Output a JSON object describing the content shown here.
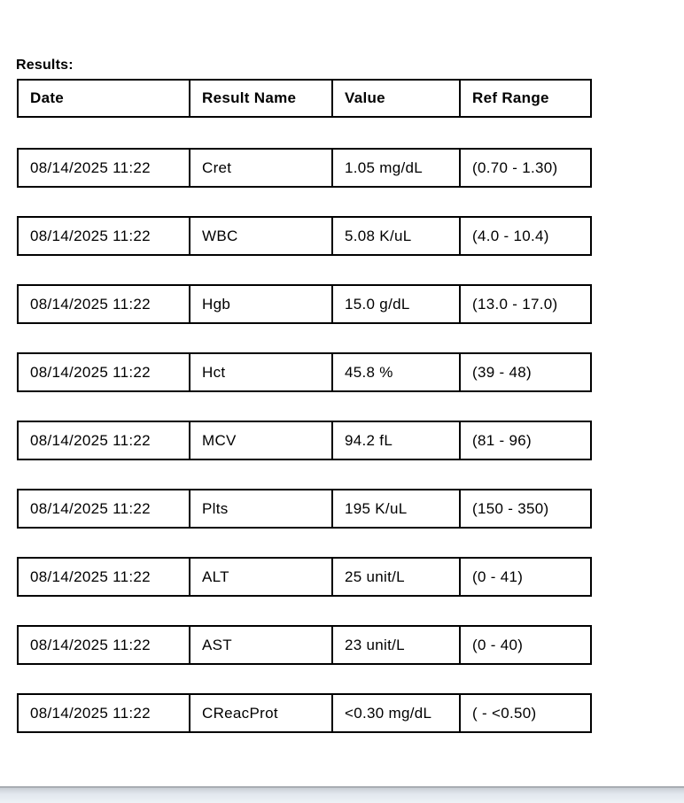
{
  "page": {
    "results_label": "Results:"
  },
  "table": {
    "headers": {
      "date": "Date",
      "result_name": "Result Name",
      "value": "Value",
      "ref_range": "Ref Range"
    },
    "rows": [
      {
        "date": "08/14/2025 11:22",
        "name": "Cret",
        "value": "1.05 mg/dL",
        "ref": "(0.70 - 1.30)"
      },
      {
        "date": "08/14/2025 11:22",
        "name": "WBC",
        "value": "5.08 K/uL",
        "ref": "(4.0 - 10.4)"
      },
      {
        "date": "08/14/2025 11:22",
        "name": "Hgb",
        "value": "15.0 g/dL",
        "ref": "(13.0 - 17.0)"
      },
      {
        "date": "08/14/2025 11:22",
        "name": "Hct",
        "value": "45.8 %",
        "ref": "(39 - 48)"
      },
      {
        "date": "08/14/2025 11:22",
        "name": "MCV",
        "value": "94.2 fL",
        "ref": "(81 - 96)"
      },
      {
        "date": "08/14/2025 11:22",
        "name": "Plts",
        "value": "195 K/uL",
        "ref": "(150 - 350)"
      },
      {
        "date": "08/14/2025 11:22",
        "name": "ALT",
        "value": "25 unit/L",
        "ref": "(0 - 41)"
      },
      {
        "date": "08/14/2025 11:22",
        "name": "AST",
        "value": "23 unit/L",
        "ref": "(0 - 40)"
      },
      {
        "date": "08/14/2025 11:22",
        "name": "CReacProt",
        "value": "<0.30 mg/dL",
        "ref": "( - <0.50)"
      }
    ]
  },
  "colors": {
    "table_border": "#000000",
    "text": "#000000",
    "background": "#ffffff",
    "bottom_panel_line": "#a8adb3",
    "bottom_panel_fill": "#e7ecf2"
  }
}
